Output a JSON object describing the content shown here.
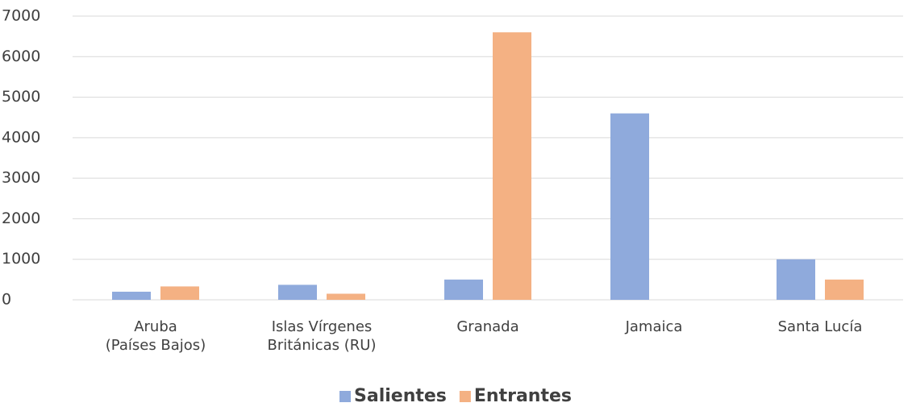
{
  "chart_data": {
    "type": "bar",
    "categories": [
      "Aruba\n(Países Bajos)",
      "Islas Vírgenes\nBritánicas (RU)",
      "Granada",
      "Jamaica",
      "Santa Lucía"
    ],
    "series": [
      {
        "name": "Salientes",
        "color": "#8faadc",
        "values": [
          200,
          370,
          500,
          4600,
          1000
        ]
      },
      {
        "name": "Entrantes",
        "color": "#f4b183",
        "values": [
          330,
          150,
          6600,
          0,
          500
        ]
      }
    ],
    "ylim": [
      0,
      7000
    ],
    "yticks": [
      0,
      1000,
      2000,
      3000,
      4000,
      5000,
      6000,
      7000
    ],
    "grid": true,
    "legend": "bottom"
  }
}
